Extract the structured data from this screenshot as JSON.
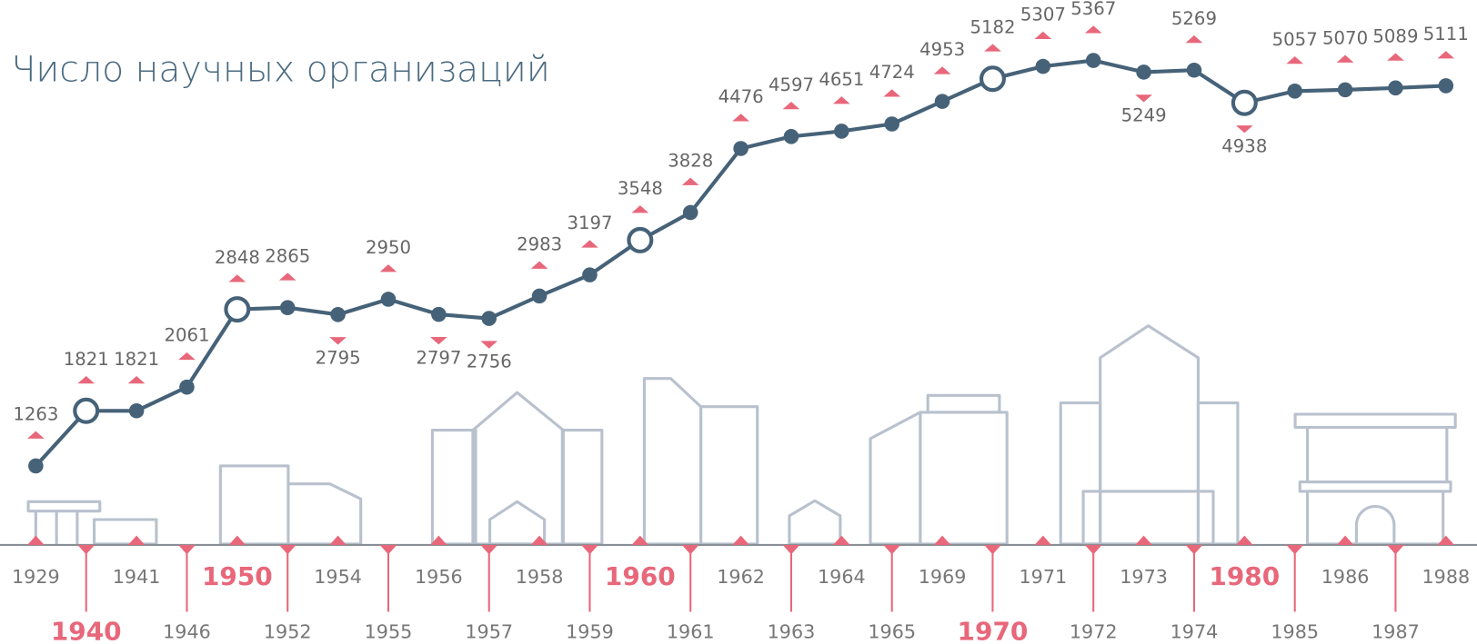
{
  "chart_data": {
    "type": "line",
    "title": "Число научных организаций",
    "categories": [
      "1929",
      "1940",
      "1941",
      "1946",
      "1950",
      "1952",
      "1954",
      "1955",
      "1956",
      "1957",
      "1958",
      "1959",
      "1960",
      "1961",
      "1962",
      "1963",
      "1964",
      "1965",
      "1969",
      "1970",
      "1971",
      "1972",
      "1973",
      "1974",
      "1980",
      "1985",
      "1986",
      "1987",
      "1988"
    ],
    "values": [
      1263,
      1821,
      1821,
      2061,
      2848,
      2865,
      2795,
      2950,
      2797,
      2756,
      2983,
      3197,
      3548,
      3828,
      4476,
      4597,
      4651,
      4724,
      4953,
      5182,
      5307,
      5367,
      5249,
      5269,
      4938,
      5057,
      5070,
      5089,
      5111
    ],
    "color": "#466278",
    "accent_color": "#e8677a"
  }
}
